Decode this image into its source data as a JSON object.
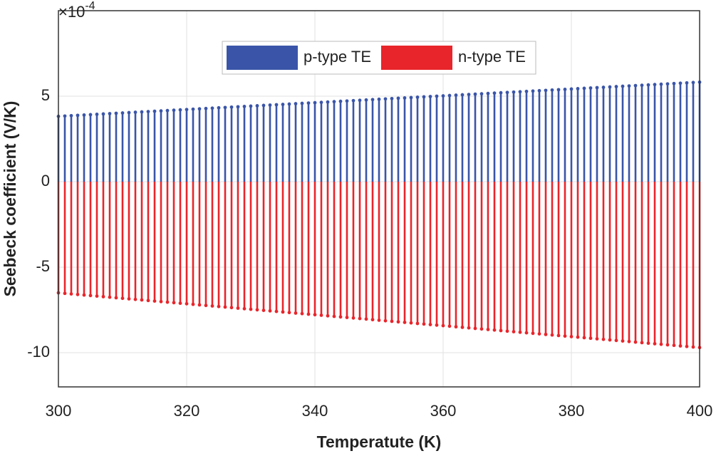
{
  "chart_data": {
    "type": "stem",
    "xlabel": "Temperatute (K)",
    "ylabel": "Seebeck coefficient (V/K)",
    "y_multiplier": "×10",
    "y_multiplier_exponent": "-4",
    "x": [
      300,
      301,
      302,
      303,
      304,
      305,
      306,
      307,
      308,
      309,
      310,
      311,
      312,
      313,
      314,
      315,
      316,
      317,
      318,
      319,
      320,
      321,
      322,
      323,
      324,
      325,
      326,
      327,
      328,
      329,
      330,
      331,
      332,
      333,
      334,
      335,
      336,
      337,
      338,
      339,
      340,
      341,
      342,
      343,
      344,
      345,
      346,
      347,
      348,
      349,
      350,
      351,
      352,
      353,
      354,
      355,
      356,
      357,
      358,
      359,
      360,
      361,
      362,
      363,
      364,
      365,
      366,
      367,
      368,
      369,
      370,
      371,
      372,
      373,
      374,
      375,
      376,
      377,
      378,
      379,
      380,
      381,
      382,
      383,
      384,
      385,
      386,
      387,
      388,
      389,
      390,
      391,
      392,
      393,
      394,
      395,
      396,
      397,
      398,
      399,
      400
    ],
    "series": [
      {
        "name": "p-type TE",
        "color": "#3a55a8",
        "values": [
          3.82,
          3.84,
          3.86,
          3.88,
          3.9,
          3.92,
          3.94,
          3.96,
          3.98,
          4.0,
          4.02,
          4.04,
          4.06,
          4.08,
          4.1,
          4.12,
          4.14,
          4.16,
          4.18,
          4.2,
          4.22,
          4.24,
          4.26,
          4.28,
          4.3,
          4.32,
          4.34,
          4.36,
          4.38,
          4.4,
          4.42,
          4.44,
          4.46,
          4.48,
          4.5,
          4.52,
          4.54,
          4.56,
          4.58,
          4.6,
          4.62,
          4.64,
          4.66,
          4.68,
          4.7,
          4.72,
          4.74,
          4.76,
          4.78,
          4.8,
          4.82,
          4.84,
          4.86,
          4.88,
          4.9,
          4.92,
          4.94,
          4.96,
          4.98,
          5.0,
          5.02,
          5.04,
          5.06,
          5.08,
          5.1,
          5.12,
          5.14,
          5.16,
          5.18,
          5.2,
          5.22,
          5.24,
          5.26,
          5.28,
          5.3,
          5.32,
          5.34,
          5.36,
          5.38,
          5.4,
          5.42,
          5.44,
          5.46,
          5.48,
          5.5,
          5.52,
          5.54,
          5.56,
          5.58,
          5.6,
          5.62,
          5.64,
          5.66,
          5.68,
          5.7,
          5.72,
          5.74,
          5.76,
          5.78,
          5.8,
          5.82
        ]
      },
      {
        "name": "n-type TE",
        "color": "#e8252b",
        "values": [
          -6.5,
          -6.532,
          -6.564,
          -6.596,
          -6.628,
          -6.66,
          -6.692,
          -6.724,
          -6.756,
          -6.788,
          -6.82,
          -6.852,
          -6.884,
          -6.916,
          -6.948,
          -6.98,
          -7.012,
          -7.044,
          -7.076,
          -7.108,
          -7.14,
          -7.172,
          -7.204,
          -7.236,
          -7.268,
          -7.3,
          -7.332,
          -7.364,
          -7.396,
          -7.428,
          -7.46,
          -7.492,
          -7.524,
          -7.556,
          -7.588,
          -7.62,
          -7.652,
          -7.684,
          -7.716,
          -7.748,
          -7.78,
          -7.812,
          -7.844,
          -7.876,
          -7.908,
          -7.94,
          -7.972,
          -8.004,
          -8.036,
          -8.068,
          -8.1,
          -8.132,
          -8.164,
          -8.196,
          -8.228,
          -8.26,
          -8.292,
          -8.324,
          -8.356,
          -8.388,
          -8.42,
          -8.452,
          -8.484,
          -8.516,
          -8.548,
          -8.58,
          -8.612,
          -8.644,
          -8.676,
          -8.708,
          -8.74,
          -8.772,
          -8.804,
          -8.836,
          -8.868,
          -8.9,
          -8.932,
          -8.964,
          -8.996,
          -9.028,
          -9.06,
          -9.092,
          -9.124,
          -9.156,
          -9.188,
          -9.22,
          -9.252,
          -9.284,
          -9.316,
          -9.348,
          -9.38,
          -9.412,
          -9.444,
          -9.476,
          -9.508,
          -9.54,
          -9.572,
          -9.604,
          -9.636,
          -9.668,
          -9.7
        ]
      }
    ],
    "xlim": [
      300,
      400
    ],
    "xticks": [
      300,
      320,
      340,
      360,
      380,
      400
    ],
    "ylim": [
      -12,
      10
    ],
    "yticks": [
      -10,
      -5,
      0,
      5
    ],
    "grid": true,
    "legend": "top"
  }
}
